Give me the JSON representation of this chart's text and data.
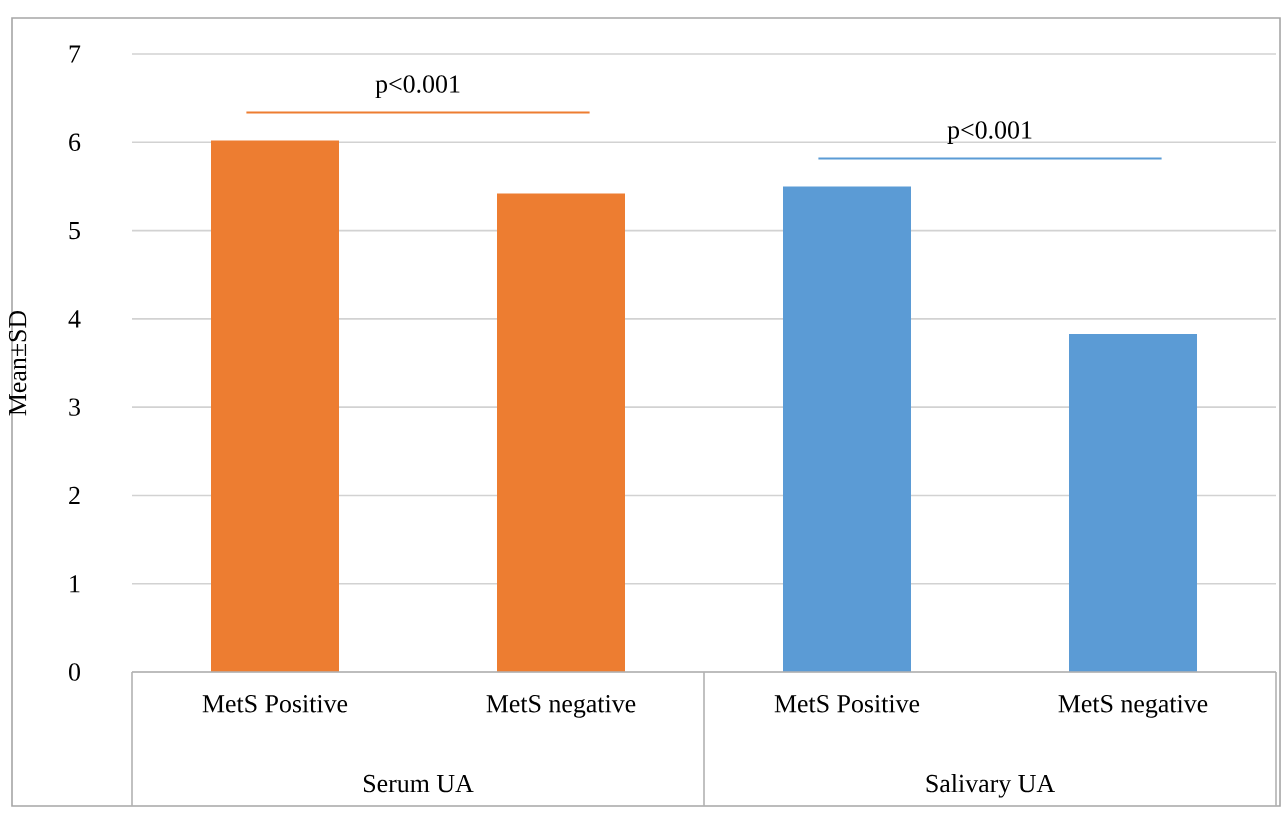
{
  "chart_data": {
    "type": "bar",
    "ylabel": "Mean±SD",
    "categories": [
      "MetS Positive",
      "MetS negative",
      "MetS Positive",
      "MetS negative"
    ],
    "values": [
      6.02,
      5.42,
      5.5,
      3.83
    ],
    "colors": [
      "#ed7d31",
      "#ed7d31",
      "#5b9bd5",
      "#5b9bd5"
    ],
    "ylim": [
      0,
      7
    ],
    "yticks": [
      0,
      1,
      2,
      3,
      4,
      5,
      6,
      7
    ],
    "grid": "y",
    "annotations": [
      "p<0.001",
      "p<0.001",
      "Serum UA",
      "Salivary UA"
    ]
  }
}
